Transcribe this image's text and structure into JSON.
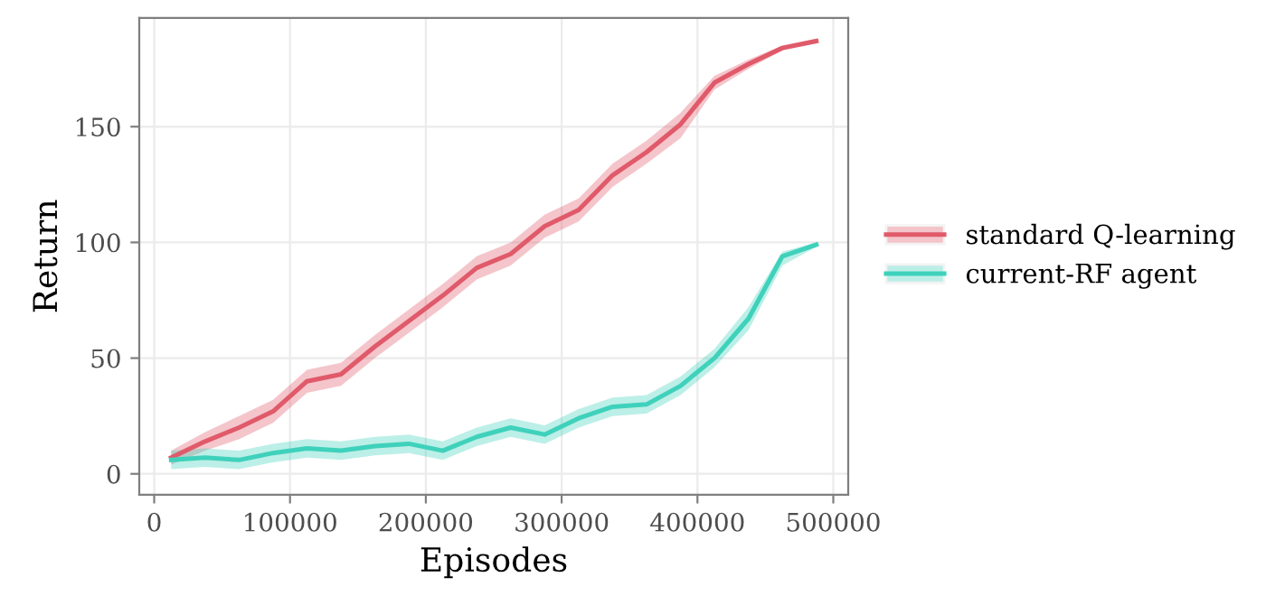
{
  "chart_data": {
    "type": "line",
    "xlabel": "Episodes",
    "ylabel": "Return",
    "x": [
      12500,
      37500,
      62500,
      87500,
      112500,
      137500,
      162500,
      187500,
      212500,
      237500,
      262500,
      287500,
      312500,
      337500,
      362500,
      387500,
      412500,
      437500,
      462500,
      487500
    ],
    "series": [
      {
        "name": "standard Q-learning",
        "color": "#e05a6a",
        "values": [
          7,
          14,
          20,
          27,
          40,
          43,
          55,
          66,
          77,
          89,
          95,
          107,
          114,
          129,
          139,
          151,
          169,
          177,
          184,
          187
        ],
        "lower": [
          4,
          10,
          15,
          22,
          35,
          38,
          50,
          61,
          72,
          84,
          90,
          102,
          109,
          124,
          134,
          145,
          166,
          175,
          183,
          186
        ],
        "upper": [
          10,
          18,
          25,
          32,
          45,
          48,
          60,
          71,
          82,
          94,
          100,
          112,
          119,
          134,
          144,
          156,
          172,
          179,
          185,
          188
        ]
      },
      {
        "name": "current-RF agent",
        "color": "#3fd1bb",
        "values": [
          6,
          7,
          6,
          9,
          11,
          10,
          12,
          13,
          10,
          16,
          20,
          17,
          24,
          29,
          30,
          38,
          50,
          67,
          94,
          99
        ],
        "lower": [
          2,
          3,
          2,
          5,
          7,
          6,
          8,
          9,
          6,
          12,
          16,
          13,
          20,
          25,
          26,
          34,
          46,
          62,
          90,
          98
        ],
        "upper": [
          10,
          11,
          10,
          13,
          15,
          14,
          16,
          17,
          14,
          20,
          24,
          21,
          28,
          33,
          34,
          42,
          54,
          72,
          96,
          100
        ]
      }
    ],
    "xlim": [
      -11000,
      511000
    ],
    "ylim": [
      -9,
      197
    ],
    "xticks": [
      0,
      100000,
      200000,
      300000,
      400000,
      500000
    ],
    "yticks": [
      0,
      50,
      100,
      150
    ],
    "grid": true,
    "legend": "right",
    "line_style": "solid",
    "marker": "none"
  }
}
